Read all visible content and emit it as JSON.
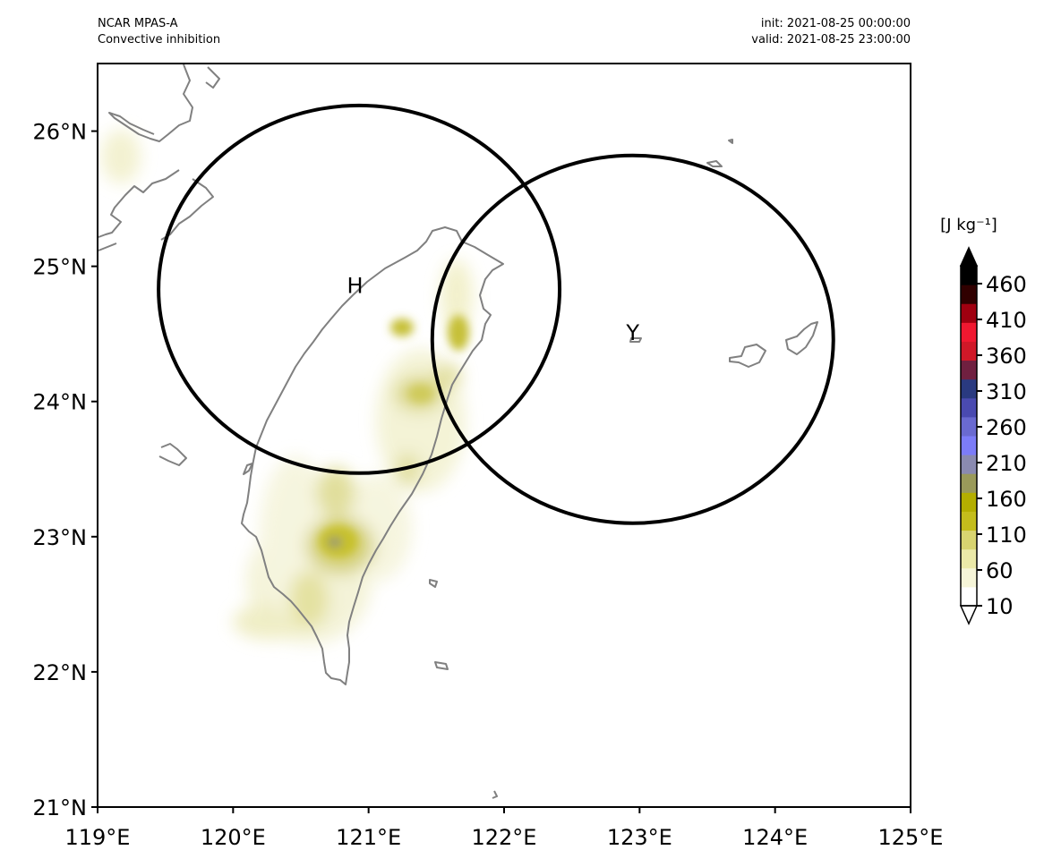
{
  "header": {
    "model": "NCAR MPAS-A",
    "field": "Convective inhibition",
    "init": "init: 2021-08-25 00:00:00",
    "valid": "valid: 2021-08-25 23:00:00"
  },
  "map": {
    "lon_range": [
      119,
      125
    ],
    "lat_range": [
      21,
      26.5
    ],
    "x_ticks": [
      "119°E",
      "120°E",
      "121°E",
      "122°E",
      "123°E",
      "124°E",
      "125°E"
    ],
    "y_ticks": [
      "21°N",
      "22°N",
      "23°N",
      "24°N",
      "25°N",
      "26°N"
    ],
    "coastline_color": "#808080",
    "markers": [
      {
        "label": "H",
        "lon": 120.9,
        "lat": 24.85
      },
      {
        "label": "Y",
        "lon": 122.95,
        "lat": 24.5
      }
    ],
    "circles": [
      {
        "center_lon": 120.93,
        "center_lat": 24.83,
        "radius_lon": 1.48,
        "radius_lat": 1.36
      },
      {
        "center_lon": 122.95,
        "center_lat": 24.46,
        "radius_lon": 1.48,
        "radius_lat": 1.36
      }
    ]
  },
  "colorbar": {
    "units": "[J kg⁻¹]",
    "ticks": [
      "10",
      "60",
      "110",
      "160",
      "210",
      "260",
      "310",
      "360",
      "410",
      "460"
    ],
    "extend": "both",
    "colors": [
      "#ffffff",
      "#f6f5d8",
      "#ebe9a8",
      "#d8d470",
      "#c4bd1c",
      "#b4ae00",
      "#9a9a5a",
      "#8a8ab0",
      "#7c7cf8",
      "#6a6ad0",
      "#4a4ab0",
      "#2a3a80",
      "#702040",
      "#d01828",
      "#f01830",
      "#a00010",
      "#300000",
      "#000000"
    ]
  }
}
